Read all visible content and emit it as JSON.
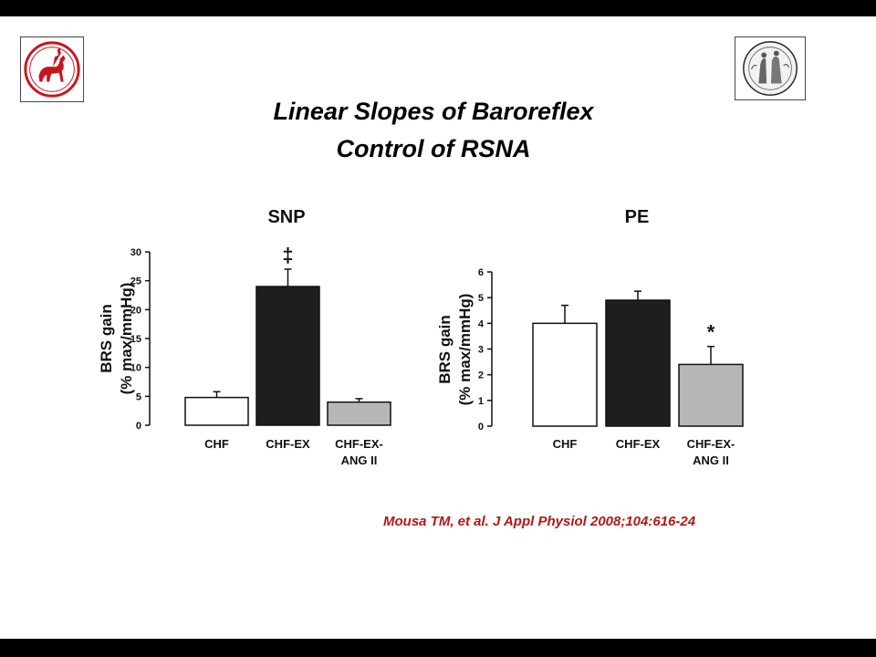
{
  "slide": {
    "title_line1": "Linear Slopes of Baroreflex",
    "title_line2": "Control of  RSNA",
    "citation": "Mousa TM, et al. J Appl Physiol  2008;104:616-24",
    "colors": {
      "citation": "#b01818",
      "background": "#ffffff",
      "band": "#000000"
    },
    "logos": [
      "university-emblem-horse-rider",
      "academy-seal-engraving"
    ]
  },
  "chart_data": [
    {
      "type": "bar",
      "title": "SNP",
      "categories": [
        "CHF",
        "CHF-EX",
        "CHF-EX-\nANG II"
      ],
      "category_lines": [
        [
          "CHF"
        ],
        [
          "CHF-EX"
        ],
        [
          "CHF-EX-",
          "ANG II"
        ]
      ],
      "values": [
        4.8,
        24.0,
        4.0
      ],
      "errors": [
        1.0,
        3.0,
        0.6
      ],
      "annotations": [
        "",
        "‡",
        ""
      ],
      "fill_colors": [
        "#ffffff",
        "#1e1e1e",
        "#b7b7b7"
      ],
      "ylabel": [
        "BRS gain",
        "(% max/mmHg)"
      ],
      "ylim": [
        0,
        30
      ],
      "yticks": [
        0,
        5,
        10,
        15,
        20,
        25,
        30
      ],
      "grid": false,
      "legend": "none"
    },
    {
      "type": "bar",
      "title": "PE",
      "categories": [
        "CHF",
        "CHF-EX",
        "CHF-EX-\nANG II"
      ],
      "category_lines": [
        [
          "CHF"
        ],
        [
          "CHF-EX"
        ],
        [
          "CHF-EX-",
          "ANG II"
        ]
      ],
      "values": [
        4.0,
        4.9,
        2.4
      ],
      "errors": [
        0.7,
        0.35,
        0.7
      ],
      "annotations": [
        "",
        "",
        "*"
      ],
      "fill_colors": [
        "#ffffff",
        "#1e1e1e",
        "#b7b7b7"
      ],
      "ylabel": [
        "BRS gain",
        "(% max/mmHg)"
      ],
      "ylim": [
        0,
        6
      ],
      "yticks": [
        0,
        1,
        2,
        3,
        4,
        5,
        6
      ],
      "grid": false,
      "legend": "none"
    }
  ]
}
